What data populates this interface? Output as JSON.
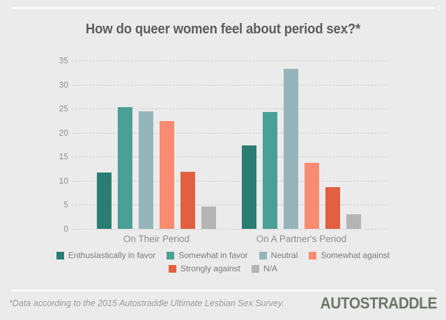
{
  "chart_data": {
    "type": "bar",
    "title": "How do queer women feel about period sex?*",
    "categories": [
      "On Their Period",
      "On A Partner's Period"
    ],
    "series": [
      {
        "name": "Enthusiastically in favor",
        "color": "#2a7d72",
        "values": [
          11.7,
          17.4
        ]
      },
      {
        "name": "Somewhat in favor",
        "color": "#4aa096",
        "values": [
          25.3,
          24.3
        ]
      },
      {
        "name": "Neutral",
        "color": "#95b5bb",
        "values": [
          24.5,
          33.2
        ]
      },
      {
        "name": "Somewhat against",
        "color": "#f98b70",
        "values": [
          22.4,
          13.7
        ]
      },
      {
        "name": "Strongly against",
        "color": "#e0603f",
        "values": [
          11.9,
          8.7
        ]
      },
      {
        "name": "N/A",
        "color": "#b4b4b4",
        "values": [
          4.7,
          3.0
        ]
      }
    ],
    "ylim": [
      0,
      35
    ],
    "ytick_step": 5,
    "grid": "horizontal-dashed",
    "legend_position": "bottom",
    "legend_rows": [
      4,
      2
    ]
  },
  "footer": {
    "note": "*Data according to the 2015 Autostraddle Ultimate Lesbian Sex Survey.",
    "logo": "AUTOSTRADDLE"
  },
  "colors": {
    "background": "#ebebeb",
    "divider": "#fafafa",
    "title_text": "#5d5d5d",
    "axis_text": "#8d8d8d",
    "legend_text": "#7a7a7a",
    "grid_line": "#cfcfcf",
    "footnote_text": "#9b9b9b",
    "logo_text": "#70756e"
  }
}
